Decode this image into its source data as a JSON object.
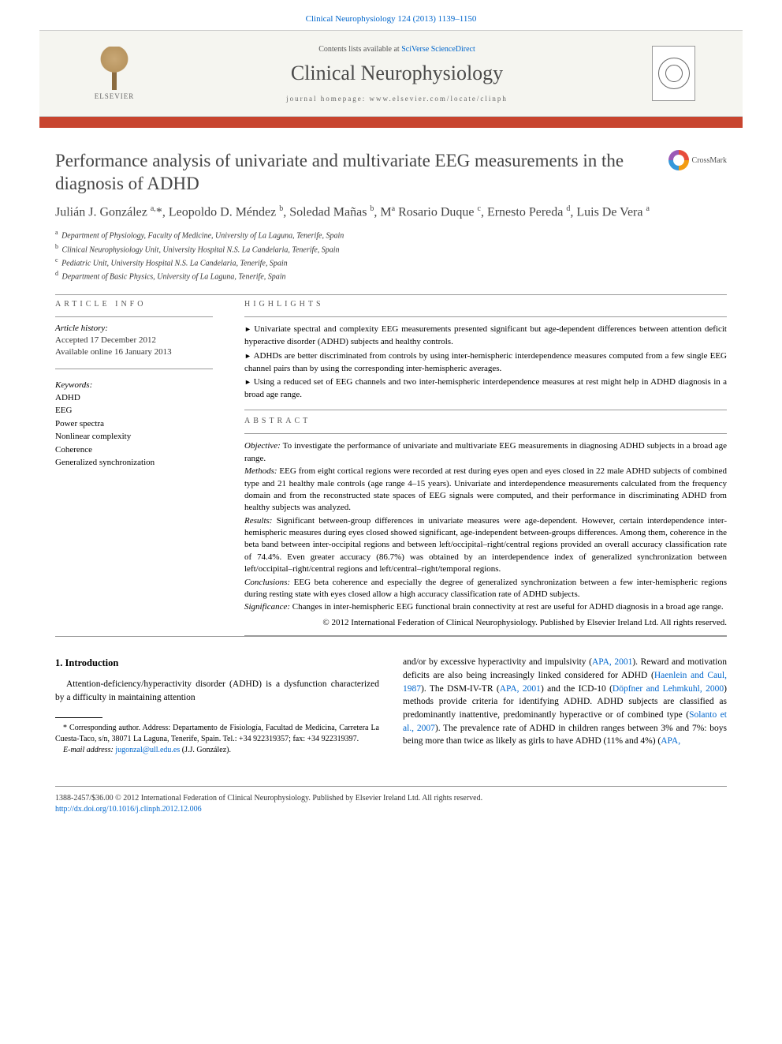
{
  "header": {
    "citation": "Clinical Neurophysiology 124 (2013) 1139–1150"
  },
  "banner": {
    "elsevier": "ELSEVIER",
    "contents_prefix": "Contents lists available at ",
    "contents_link": "SciVerse ScienceDirect",
    "journal": "Clinical Neurophysiology",
    "homepage": "journal homepage: www.elsevier.com/locate/clinph"
  },
  "article": {
    "title": "Performance analysis of univariate and multivariate EEG measurements in the diagnosis of ADHD",
    "crossmark": "CrossMark",
    "authors_html": "Julián J. González <sup>a,</sup>*, Leopoldo D. Méndez <sup>b</sup>, Soledad Mañas <sup>b</sup>, Mª Rosario Duque <sup>c</sup>, Ernesto Pereda <sup>d</sup>, Luis De Vera <sup>a</sup>",
    "affiliations": [
      {
        "sup": "a",
        "text": "Department of Physiology, Faculty of Medicine, University of La Laguna, Tenerife, Spain"
      },
      {
        "sup": "b",
        "text": "Clinical Neurophysiology Unit, University Hospital N.S. La Candelaria, Tenerife, Spain"
      },
      {
        "sup": "c",
        "text": "Pediatric Unit, University Hospital N.S. La Candelaria, Tenerife, Spain"
      },
      {
        "sup": "d",
        "text": "Department of Basic Physics, University of La Laguna, Tenerife, Spain"
      }
    ]
  },
  "info": {
    "article_info_label": "ARTICLE INFO",
    "history_label": "Article history:",
    "accepted": "Accepted 17 December 2012",
    "online": "Available online 16 January 2013",
    "keywords_label": "Keywords:",
    "keywords": [
      "ADHD",
      "EEG",
      "Power spectra",
      "Nonlinear complexity",
      "Coherence",
      "Generalized synchronization"
    ]
  },
  "highlights": {
    "label": "HIGHLIGHTS",
    "items": [
      "Univariate spectral and complexity EEG measurements presented significant but age-dependent differences between attention deficit hyperactive disorder (ADHD) subjects and healthy controls.",
      "ADHDs are better discriminated from controls by using inter-hemispheric interdependence measures computed from a few single EEG channel pairs than by using the corresponding inter-hemispheric averages.",
      "Using a reduced set of EEG channels and two inter-hemispheric interdependence measures at rest might help in ADHD diagnosis in a broad age range."
    ]
  },
  "abstract": {
    "label": "ABSTRACT",
    "sections": {
      "objective": {
        "label": "Objective:",
        "text": " To investigate the performance of univariate and multivariate EEG measurements in diagnosing ADHD subjects in a broad age range."
      },
      "methods": {
        "label": "Methods:",
        "text": " EEG from eight cortical regions were recorded at rest during eyes open and eyes closed in 22 male ADHD subjects of combined type and 21 healthy male controls (age range 4–15 years). Univariate and interdependence measurements calculated from the frequency domain and from the reconstructed state spaces of EEG signals were computed, and their performance in discriminating ADHD from healthy subjects was analyzed."
      },
      "results": {
        "label": "Results:",
        "text": " Significant between-group differences in univariate measures were age-dependent. However, certain interdependence inter-hemispheric measures during eyes closed showed significant, age-independent between-groups differences. Among them, coherence in the beta band between inter-occipital regions and between left/occipital–right/central regions provided an overall accuracy classification rate of 74.4%. Even greater accuracy (86.7%) was obtained by an interdependence index of generalized synchronization between left/occipital–right/central regions and left/central–right/temporal regions."
      },
      "conclusions": {
        "label": "Conclusions:",
        "text": " EEG beta coherence and especially the degree of generalized synchronization between a few inter-hemispheric regions during resting state with eyes closed allow a high accuracy classification rate of ADHD subjects."
      },
      "significance": {
        "label": "Significance:",
        "text": " Changes in inter-hemispheric EEG functional brain connectivity at rest are useful for ADHD diagnosis in a broad age range."
      }
    },
    "copyright": "© 2012 International Federation of Clinical Neurophysiology. Published by Elsevier Ireland Ltd. All rights reserved."
  },
  "body": {
    "section_number": "1. Introduction",
    "col1_p1_a": "Attention-deficiency/hyperactivity disorder (ADHD) is a dysfunction characterized by a difficulty in maintaining attention",
    "col2_p1_a": "and/or by excessive hyperactivity and impulsivity (",
    "col2_link1": "APA, 2001",
    "col2_p1_b": "). Reward and motivation deficits are also being increasingly linked considered for ADHD (",
    "col2_link2": "Haenlein and Caul, 1987",
    "col2_p1_c": "). The DSM-IV-TR (",
    "col2_link3": "APA, 2001",
    "col2_p1_d": ") and the ICD-10 (",
    "col2_link4": "Döpfner and Lehmkuhl, 2000",
    "col2_p1_e": ") methods provide criteria for identifying ADHD. ADHD subjects are classified as predominantly inattentive, predominantly hyperactive or of combined type (",
    "col2_link5": "Solanto et al., 2007",
    "col2_p1_f": "). The prevalence rate of ADHD in children ranges between 3% and 7%: boys being more than twice as likely as girls to have ADHD (11% and 4%) (",
    "col2_link6": "APA,"
  },
  "footnote": {
    "corr_label": "* Corresponding author. Address: Departamento de Fisiología, Facultad de Medicina, Carretera La Cuesta-Taco, s/n, 38071 La Laguna, Tenerife, Spain. Tel.: +34 922319357; fax: +34 922319397.",
    "email_label": "E-mail address:",
    "email": "jugonzal@ull.edu.es",
    "email_name": " (J.J. González)."
  },
  "footer": {
    "line1": "1388-2457/$36.00 © 2012 International Federation of Clinical Neurophysiology. Published by Elsevier Ireland Ltd. All rights reserved.",
    "doi": "http://dx.doi.org/10.1016/j.clinph.2012.12.006"
  },
  "colors": {
    "link": "#0066cc",
    "redbar": "#c8452f",
    "text_gray": "#4a4a4a"
  }
}
